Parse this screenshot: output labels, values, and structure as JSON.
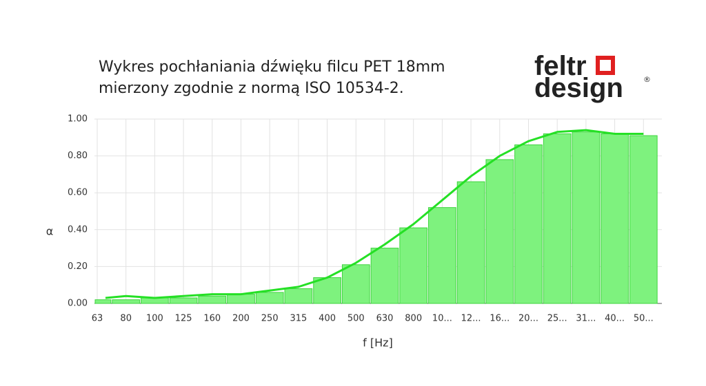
{
  "title_lines": [
    "Wykres pochłaniania dźwięku filcu PET 18mm",
    "mierzony zgodnie z normą  ISO 10534-2."
  ],
  "logo": {
    "top": "feltr",
    "bottom": "design",
    "mark": "®"
  },
  "chart_data": {
    "type": "bar",
    "x_label": "f [Hz]",
    "y_label": "α",
    "categories": [
      "63",
      "80",
      "100",
      "125",
      "160",
      "200",
      "250",
      "315",
      "400",
      "500",
      "630",
      "800",
      "10...",
      "12...",
      "16...",
      "20...",
      "25...",
      "31...",
      "40...",
      "50..."
    ],
    "series": [
      {
        "type": "bar",
        "color": "#7ef27e",
        "values": [
          0.02,
          0.02,
          0.03,
          0.03,
          0.04,
          0.05,
          0.06,
          0.08,
          0.14,
          0.21,
          0.3,
          0.41,
          0.52,
          0.66,
          0.78,
          0.86,
          0.92,
          0.93,
          0.92,
          0.91
        ]
      },
      {
        "type": "line",
        "color": "#25e025",
        "values": [
          0.03,
          0.04,
          0.03,
          0.04,
          0.05,
          0.05,
          0.07,
          0.09,
          0.14,
          0.22,
          0.32,
          0.43,
          0.56,
          0.69,
          0.8,
          0.88,
          0.93,
          0.94,
          0.92,
          0.92
        ]
      }
    ],
    "ylim": [
      0,
      1
    ],
    "yticks": [
      {
        "value": 0,
        "label": "0.00"
      },
      {
        "value": 0.2,
        "label": "0.20"
      },
      {
        "value": 0.4,
        "label": "0.40"
      },
      {
        "value": 0.6,
        "label": "0.60"
      },
      {
        "value": 0.8,
        "label": "0.80"
      },
      {
        "value": 1,
        "label": "1.00"
      }
    ],
    "grid": true
  }
}
